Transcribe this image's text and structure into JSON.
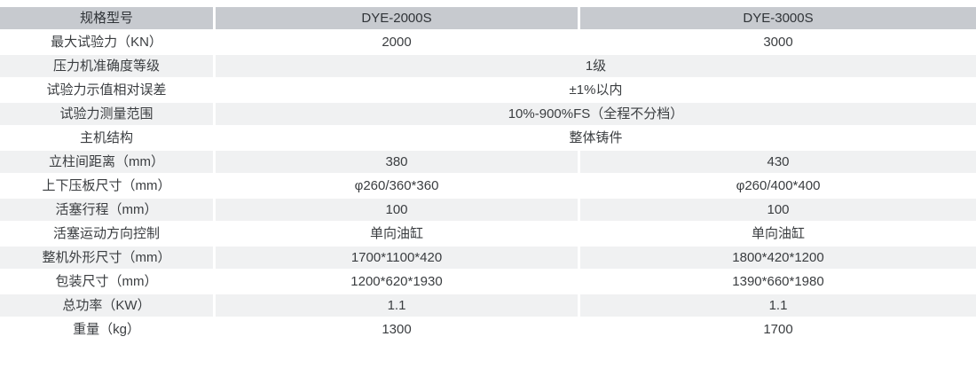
{
  "table": {
    "header": {
      "model_label": "规格型号",
      "col1": "DYE-2000S",
      "col2": "DYE-3000S"
    },
    "rows": [
      {
        "label": "最大试验力（KN）",
        "v1": "2000",
        "v2": "3000"
      },
      {
        "label": "压力机准确度等级",
        "merged": "1级"
      },
      {
        "label": "试验力示值相对误差",
        "merged": "±1%以内"
      },
      {
        "label": "试验力测量范围",
        "merged": "10%-900%FS（全程不分档）"
      },
      {
        "label": "主机结构",
        "merged": "整体铸件"
      },
      {
        "label": "立柱间距离（mm）",
        "v1": "380",
        "v2": "430"
      },
      {
        "label": "上下压板尺寸（mm）",
        "v1": "φ260/360*360",
        "v2": "φ260/400*400"
      },
      {
        "label": "活塞行程（mm）",
        "v1": "100",
        "v2": "100"
      },
      {
        "label": "活塞运动方向控制",
        "v1": "单向油缸",
        "v2": "单向油缸"
      },
      {
        "label": "整机外形尺寸（mm）",
        "v1": "1700*1100*420",
        "v2": "1800*420*1200"
      },
      {
        "label": "包装尺寸（mm）",
        "v1": "1200*620*1930",
        "v2": "1390*660*1980"
      },
      {
        "label": "总功率（KW）",
        "v1": "1.1",
        "v2": "1.1"
      },
      {
        "label": "重量（kg）",
        "v1": "1300",
        "v2": "1700"
      }
    ]
  },
  "colors": {
    "header_bg": "#c7cacf",
    "header_text": "#303438",
    "stripe_bg": "#f0f1f2",
    "row_bg": "#ffffff",
    "text": "#3a3d40"
  }
}
